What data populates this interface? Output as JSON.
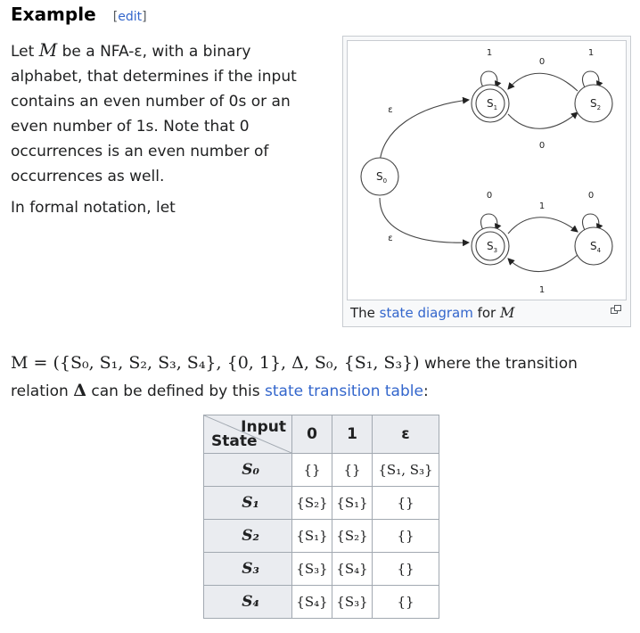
{
  "heading": {
    "title": "Example",
    "edit_label": "edit"
  },
  "intro": {
    "part1": "Let ",
    "var_m": "M",
    "part2": " be a NFA-ε, with a binary alphabet, that determines if the input contains an even number of 0s or an even number of 1s. Note that 0 occurrences is an even number of occurrences as well."
  },
  "formal_note": "In formal notation, let",
  "figure": {
    "caption_pre": "The ",
    "caption_link": "state diagram",
    "caption_mid": " for ",
    "caption_var": "M",
    "enlarge_icon": "enlarge-icon",
    "states": {
      "s0": {
        "base": "S",
        "sub": "0"
      },
      "s1": {
        "base": "S",
        "sub": "1"
      },
      "s2": {
        "base": "S",
        "sub": "2"
      },
      "s3": {
        "base": "S",
        "sub": "3"
      },
      "s4": {
        "base": "S",
        "sub": "4"
      }
    },
    "labels": {
      "eps_top": "ε",
      "eps_bottom": "ε",
      "loop_s1": "1",
      "loop_s2": "1",
      "loop_s3": "0",
      "loop_s4": "0",
      "s1_s2": "0",
      "s2_s1": "0",
      "s3_s4": "1",
      "s4_s3": "1"
    }
  },
  "formula": {
    "expr": "M = ({S₀, S₁, S₂, S₃, S₄}, {0, 1}, Δ, S₀, {S₁, S₃})",
    "text1": " where the transition relation ",
    "delta": "Δ",
    "text2": " can be defined by this ",
    "link": "state transition table",
    "text3": ":"
  },
  "table": {
    "corner_input": "Input",
    "corner_state": "State",
    "columns": [
      "0",
      "1",
      "ε"
    ],
    "rows": [
      {
        "state": "S₀",
        "cells": [
          "{}",
          "{}",
          "{S₁, S₃}"
        ]
      },
      {
        "state": "S₁",
        "cells": [
          "{S₂}",
          "{S₁}",
          "{}"
        ]
      },
      {
        "state": "S₂",
        "cells": [
          "{S₁}",
          "{S₂}",
          "{}"
        ]
      },
      {
        "state": "S₃",
        "cells": [
          "{S₃}",
          "{S₄}",
          "{}"
        ]
      },
      {
        "state": "S₄",
        "cells": [
          "{S₄}",
          "{S₃}",
          "{}"
        ]
      }
    ]
  }
}
